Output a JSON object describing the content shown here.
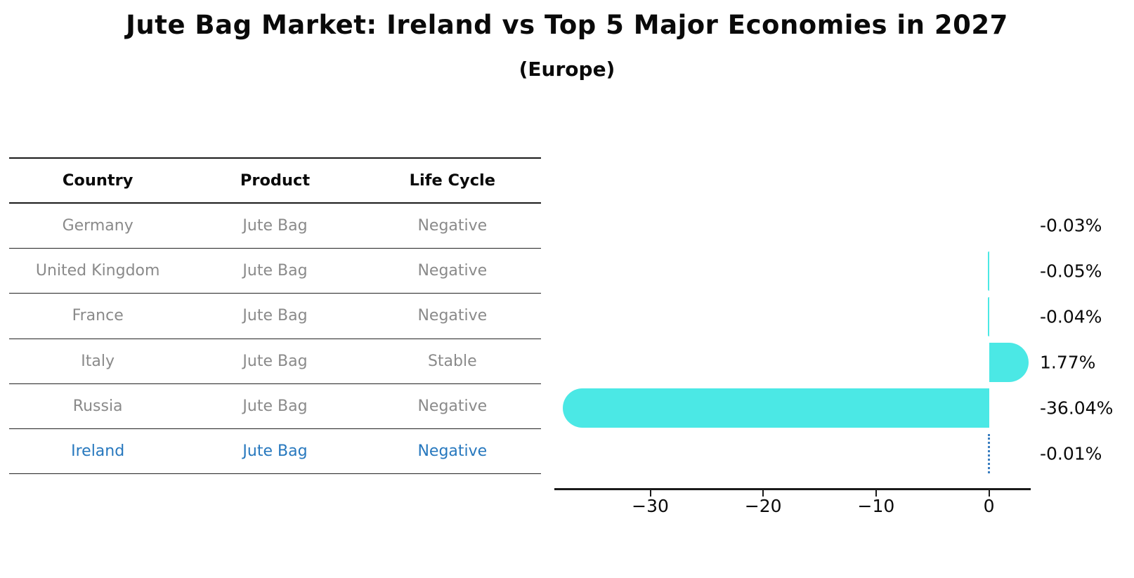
{
  "title": "Jute Bag Market: Ireland vs Top 5 Major Economies in 2027",
  "subtitle": "(Europe)",
  "table": {
    "headers": [
      "Country",
      "Product",
      "Life Cycle"
    ],
    "rows": [
      {
        "country": "Germany",
        "product": "Jute Bag",
        "life_cycle": "Negative",
        "highlight": false
      },
      {
        "country": "United Kingdom",
        "product": "Jute Bag",
        "life_cycle": "Negative",
        "highlight": false
      },
      {
        "country": "France",
        "product": "Jute Bag",
        "life_cycle": "Negative",
        "highlight": false
      },
      {
        "country": "Italy",
        "product": "Jute Bag",
        "life_cycle": "Stable",
        "highlight": false
      },
      {
        "country": "Russia",
        "product": "Jute Bag",
        "life_cycle": "Negative",
        "highlight": false
      },
      {
        "country": "Ireland",
        "product": "Jute Bag",
        "life_cycle": "Negative",
        "highlight": true
      }
    ]
  },
  "chart_data": {
    "type": "bar",
    "orientation": "horizontal",
    "title": "Jute Bag Market: Ireland vs Top 5 Major Economies in 2027 (Europe)",
    "categories": [
      "Germany",
      "United Kingdom",
      "France",
      "Italy",
      "Russia",
      "Ireland"
    ],
    "values": [
      -0.03,
      -0.05,
      -0.04,
      1.77,
      -36.04,
      -0.01
    ],
    "value_labels": [
      "-0.03%",
      "-0.05%",
      "-0.04%",
      "1.77%",
      "-36.04%",
      "-0.01%"
    ],
    "unit": "%",
    "x_ticks": [
      -30,
      -20,
      -10,
      0
    ],
    "x_tick_labels": [
      "−30",
      "−20",
      "−10",
      "0"
    ],
    "xlim": [
      -38.5,
      3.7
    ],
    "grid": false,
    "legend": "none",
    "bar_color": "#4BE8E5",
    "highlight_category": "Ireland",
    "highlight_marker": "dotted-blue-zero-line",
    "highlight_marker_color": "#3B7EC0"
  }
}
